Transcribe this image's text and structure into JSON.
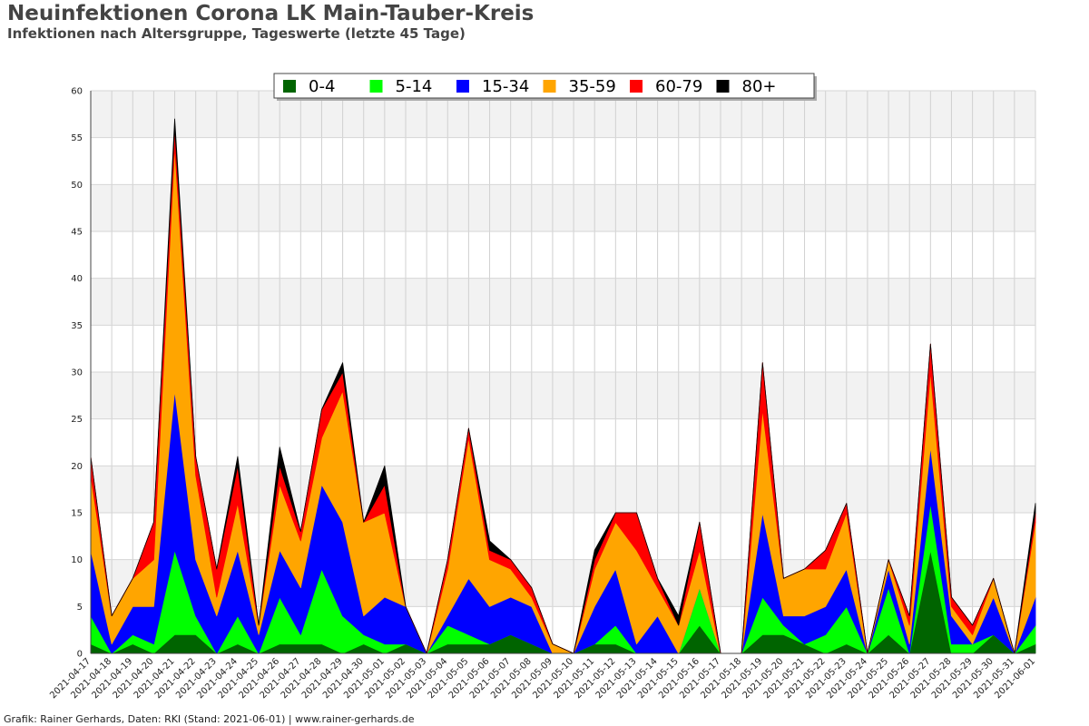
{
  "title": "Neuinfektionen Corona LK Main-Tauber-Kreis",
  "subtitle": "Infektionen nach Altersgruppe, Tageswerte (letzte 45 Tage)",
  "footer": "Grafik: Rainer Gerhards, Daten: RKI (Stand: 2021-06-01) | www.rainer-gerhards.de",
  "chart_data": {
    "type": "area",
    "stacked": true,
    "ylim": [
      0,
      60
    ],
    "yticks": [
      0,
      5,
      10,
      15,
      20,
      25,
      30,
      35,
      40,
      45,
      50,
      55,
      60
    ],
    "grid": true,
    "legend_position": "top-center",
    "categories": [
      "2021-04-17",
      "2021-04-18",
      "2021-04-19",
      "2021-04-20",
      "2021-04-21",
      "2021-04-22",
      "2021-04-23",
      "2021-04-24",
      "2021-04-25",
      "2021-04-26",
      "2021-04-27",
      "2021-04-28",
      "2021-04-29",
      "2021-04-30",
      "2021-05-01",
      "2021-05-02",
      "2021-05-03",
      "2021-05-04",
      "2021-05-05",
      "2021-05-06",
      "2021-05-07",
      "2021-05-08",
      "2021-05-09",
      "2021-05-10",
      "2021-05-11",
      "2021-05-12",
      "2021-05-13",
      "2021-05-14",
      "2021-05-15",
      "2021-05-16",
      "2021-05-17",
      "2021-05-18",
      "2021-05-19",
      "2021-05-20",
      "2021-05-21",
      "2021-05-22",
      "2021-05-23",
      "2021-05-24",
      "2021-05-25",
      "2021-05-26",
      "2021-05-27",
      "2021-05-28",
      "2021-05-29",
      "2021-05-30",
      "2021-05-31",
      "2021-06-01"
    ],
    "series": [
      {
        "name": "0-4",
        "color": "#006400",
        "values": [
          1,
          0,
          1,
          0,
          2,
          2,
          0,
          1,
          0,
          1,
          1,
          1,
          0,
          1,
          0,
          1,
          0,
          1,
          1,
          1,
          2,
          1,
          0,
          0,
          1,
          1,
          0,
          0,
          0,
          3,
          0,
          0,
          2,
          2,
          1,
          0,
          1,
          0,
          2,
          0,
          11,
          0,
          0,
          2,
          0,
          1
        ]
      },
      {
        "name": "5-14",
        "color": "#00ff00",
        "values": [
          3,
          0,
          1,
          1,
          9,
          2,
          0,
          3,
          0,
          5,
          1,
          8,
          4,
          1,
          1,
          0,
          0,
          2,
          1,
          0,
          0,
          0,
          0,
          0,
          0,
          2,
          0,
          0,
          0,
          4,
          0,
          0,
          4,
          1,
          0,
          2,
          4,
          0,
          5,
          0,
          5,
          1,
          1,
          0,
          0,
          2
        ]
      },
      {
        "name": "15-34",
        "color": "#0000ff",
        "values": [
          7,
          1,
          3,
          4,
          17,
          6,
          4,
          7,
          2,
          5,
          5,
          9,
          10,
          2,
          5,
          4,
          0,
          1,
          6,
          4,
          4,
          4,
          0,
          0,
          4,
          6,
          1,
          4,
          0,
          0,
          0,
          0,
          9,
          1,
          3,
          3,
          4,
          0,
          2,
          1,
          6,
          3,
          0,
          4,
          0,
          3
        ]
      },
      {
        "name": "35-59",
        "color": "#ffa500",
        "values": [
          8,
          3,
          3,
          5,
          26,
          9,
          2,
          5,
          1,
          7,
          5,
          5,
          14,
          10,
          9,
          0,
          0,
          5,
          15,
          5,
          3,
          1,
          1,
          0,
          4,
          5,
          10,
          3,
          3,
          4,
          0,
          0,
          11,
          4,
          5,
          4,
          6,
          0,
          1,
          2,
          8,
          1,
          1,
          2,
          0,
          8
        ]
      },
      {
        "name": "60-79",
        "color": "#ff0000",
        "values": [
          2,
          0,
          0,
          4,
          2,
          2,
          3,
          4,
          0,
          2,
          1,
          3,
          2,
          0,
          3,
          0,
          0,
          1,
          1,
          1,
          1,
          1,
          0,
          0,
          1,
          1,
          4,
          1,
          0,
          3,
          0,
          0,
          5,
          0,
          0,
          2,
          1,
          0,
          0,
          1,
          3,
          1,
          1,
          0,
          0,
          1
        ]
      },
      {
        "name": "80+",
        "color": "#000000",
        "values": [
          0,
          0,
          0,
          0,
          1,
          0,
          0,
          1,
          0,
          2,
          0,
          0,
          1,
          0,
          2,
          0,
          0,
          0,
          0,
          1,
          0,
          0,
          0,
          0,
          1,
          0,
          0,
          0,
          1,
          0,
          0,
          0,
          0,
          0,
          0,
          0,
          0,
          0,
          0,
          0,
          0,
          0,
          0,
          0,
          0,
          1
        ]
      }
    ]
  }
}
